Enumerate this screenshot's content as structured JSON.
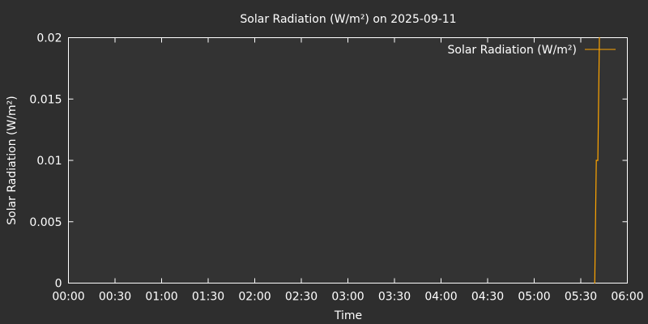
{
  "chart_data": {
    "type": "line",
    "title": "Solar Radiation (W/m²) on 2025-09-11",
    "xlabel": "Time",
    "ylabel": "Solar Radiation (W/m²)",
    "x_ticks": [
      "00:00",
      "00:30",
      "01:00",
      "01:30",
      "02:00",
      "02:30",
      "03:00",
      "03:30",
      "04:00",
      "04:30",
      "05:00",
      "05:30",
      "06:00"
    ],
    "y_ticks": [
      "0",
      "0.005",
      "0.01",
      "0.015",
      "0.02"
    ],
    "xlim": [
      "00:00",
      "06:00"
    ],
    "ylim": [
      0,
      0.02
    ],
    "grid": false,
    "legend_position": "top-right",
    "colors": {
      "background": "#2e2e2e",
      "plot_area": "#333333",
      "text": "#ffffff",
      "series": "#ffa500"
    },
    "series": [
      {
        "name": "Solar Radiation (W/m²)",
        "color": "#ffa500",
        "points": [
          {
            "x": "05:39",
            "y": 0
          },
          {
            "x": "05:40",
            "y": 0.01
          },
          {
            "x": "05:41",
            "y": 0.01
          },
          {
            "x": "05:42",
            "y": 0.02
          }
        ]
      }
    ]
  }
}
